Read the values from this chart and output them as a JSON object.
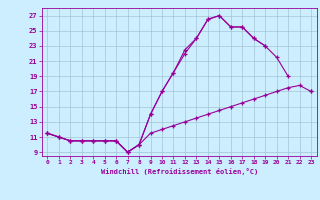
{
  "xlabel": "Windchill (Refroidissement éolien,°C)",
  "x": [
    0,
    1,
    2,
    3,
    4,
    5,
    6,
    7,
    8,
    9,
    10,
    11,
    12,
    13,
    14,
    15,
    16,
    17,
    18,
    19,
    20,
    21,
    22,
    23
  ],
  "line1": [
    11.5,
    11.0,
    10.5,
    10.5,
    10.5,
    10.5,
    10.5,
    9.0,
    10.0,
    14.0,
    17.0,
    19.5,
    22.5,
    24.0,
    26.5,
    27.0,
    25.5,
    25.5,
    24.0,
    23.0,
    null,
    null,
    null,
    null
  ],
  "line2": [
    11.5,
    11.0,
    10.5,
    10.5,
    10.5,
    10.5,
    10.5,
    9.0,
    10.0,
    14.0,
    17.0,
    19.5,
    22.0,
    24.0,
    26.5,
    27.0,
    25.5,
    25.5,
    24.0,
    23.0,
    21.5,
    19.0,
    null,
    17.0
  ],
  "line3": [
    11.5,
    11.0,
    10.5,
    10.5,
    10.5,
    10.5,
    10.5,
    9.0,
    10.0,
    11.5,
    12.0,
    12.5,
    13.0,
    13.5,
    14.0,
    14.5,
    15.0,
    15.5,
    16.0,
    16.5,
    17.0,
    17.5,
    17.8,
    17.0
  ],
  "color": "#990099",
  "bg_color": "#cceeff",
  "grid_color": "#99bbcc",
  "ylim": [
    8.5,
    28.0
  ],
  "xlim": [
    -0.5,
    23.5
  ],
  "yticks": [
    9,
    11,
    13,
    15,
    17,
    19,
    21,
    23,
    25,
    27
  ],
  "xticks": [
    0,
    1,
    2,
    3,
    4,
    5,
    6,
    7,
    8,
    9,
    10,
    11,
    12,
    13,
    14,
    15,
    16,
    17,
    18,
    19,
    20,
    21,
    22,
    23
  ]
}
